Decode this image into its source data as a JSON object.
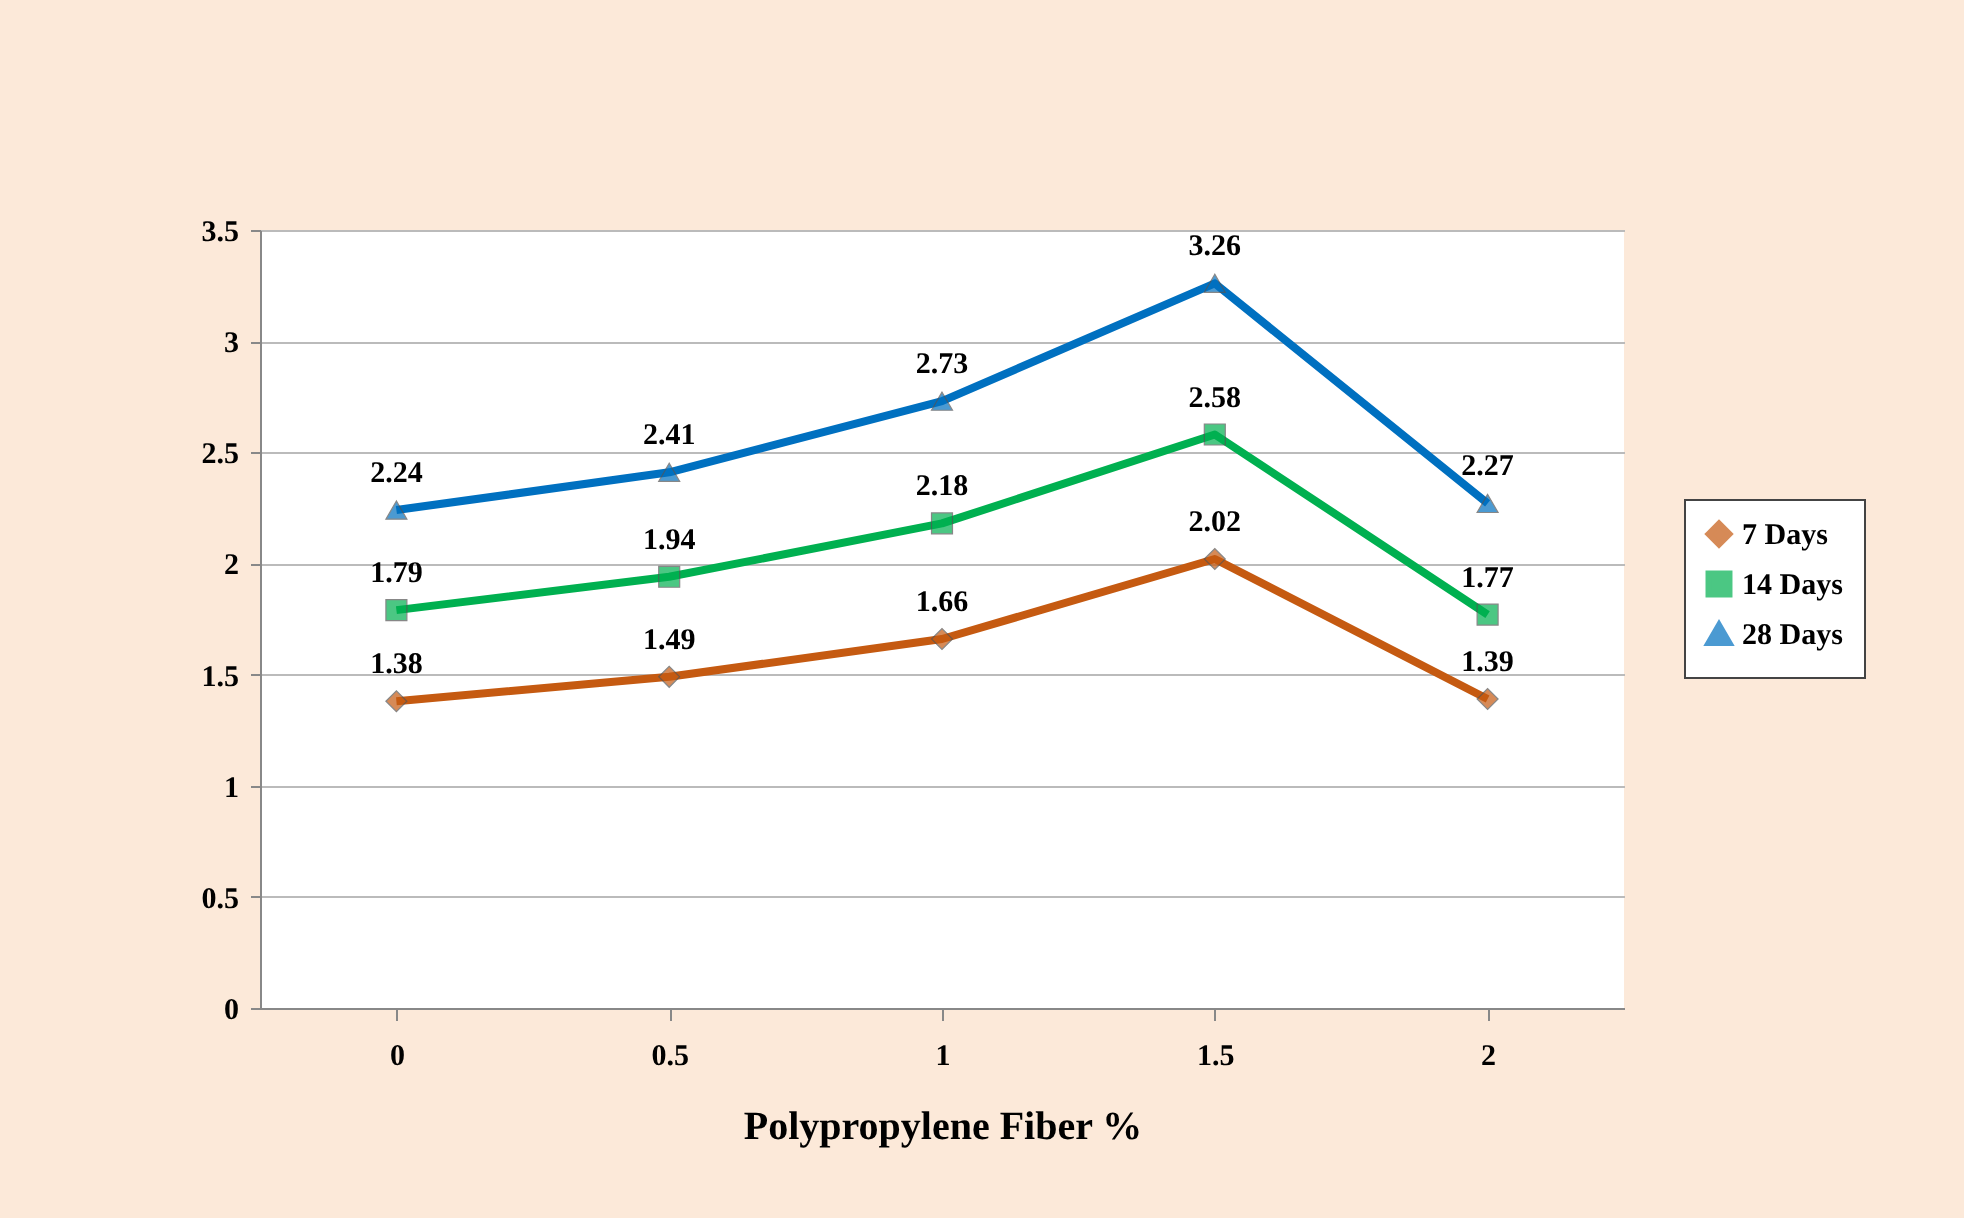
{
  "chart_data": {
    "type": "line",
    "xlabel": "Polypropylene Fiber %",
    "categories": [
      "0",
      "0.5",
      "1",
      "1.5",
      "2"
    ],
    "series": [
      {
        "name": "7 Days",
        "color": "#c55a11",
        "marker": "diamond",
        "values": [
          1.38,
          1.49,
          1.66,
          2.02,
          1.39
        ]
      },
      {
        "name": "14 Days",
        "color": "#00b050",
        "marker": "square",
        "values": [
          1.79,
          1.94,
          2.18,
          2.58,
          1.77
        ]
      },
      {
        "name": "28 Days",
        "color": "#0070c0",
        "marker": "triangle",
        "values": [
          2.24,
          2.41,
          2.73,
          3.26,
          2.27
        ]
      }
    ],
    "ylim": [
      0,
      3.5
    ],
    "yticks": [
      0,
      0.5,
      1,
      1.5,
      2,
      2.5,
      3,
      3.5
    ],
    "grid": "y",
    "legend": "right",
    "data_labels": true
  }
}
